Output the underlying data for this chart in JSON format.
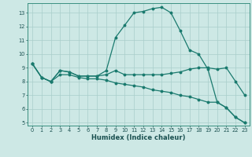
{
  "xlabel": "Humidex (Indice chaleur)",
  "bg_color": "#cde8e5",
  "grid_color": "#a8ceca",
  "line_color": "#1a7a6e",
  "xlim": [
    -0.5,
    23.5
  ],
  "ylim": [
    4.8,
    13.7
  ],
  "yticks": [
    5,
    6,
    7,
    8,
    9,
    10,
    11,
    12,
    13
  ],
  "xticks": [
    0,
    1,
    2,
    3,
    4,
    5,
    6,
    7,
    8,
    9,
    10,
    11,
    12,
    13,
    14,
    15,
    16,
    17,
    18,
    19,
    20,
    21,
    22,
    23
  ],
  "line1_x": [
    0,
    1,
    2,
    3,
    4,
    5,
    6,
    7,
    8,
    9,
    10,
    11,
    12,
    13,
    14,
    15,
    16,
    17,
    18,
    19,
    20,
    21,
    22,
    23
  ],
  "line1_y": [
    9.3,
    8.3,
    8.0,
    8.8,
    8.7,
    8.4,
    8.4,
    8.4,
    8.5,
    8.8,
    8.5,
    8.5,
    8.5,
    8.5,
    8.5,
    8.6,
    8.7,
    8.9,
    9.0,
    9.0,
    8.9,
    9.0,
    8.0,
    7.0
  ],
  "line2_x": [
    0,
    1,
    2,
    3,
    4,
    5,
    6,
    7,
    8,
    9,
    10,
    11,
    12,
    13,
    14,
    15,
    16,
    17,
    18,
    19,
    20,
    21,
    22,
    23
  ],
  "line2_y": [
    9.3,
    8.3,
    8.0,
    8.8,
    8.7,
    8.4,
    8.4,
    8.4,
    8.8,
    11.2,
    12.1,
    13.0,
    13.1,
    13.3,
    13.4,
    13.0,
    11.7,
    10.3,
    10.0,
    8.9,
    6.5,
    6.1,
    5.4,
    5.0
  ],
  "line3_x": [
    0,
    1,
    2,
    3,
    4,
    5,
    6,
    7,
    8,
    9,
    10,
    11,
    12,
    13,
    14,
    15,
    16,
    17,
    18,
    19,
    20,
    21,
    22,
    23
  ],
  "line3_y": [
    9.3,
    8.3,
    8.0,
    8.5,
    8.5,
    8.3,
    8.2,
    8.2,
    8.1,
    7.9,
    7.8,
    7.7,
    7.6,
    7.4,
    7.3,
    7.2,
    7.0,
    6.9,
    6.7,
    6.5,
    6.5,
    6.1,
    5.4,
    5.0
  ]
}
